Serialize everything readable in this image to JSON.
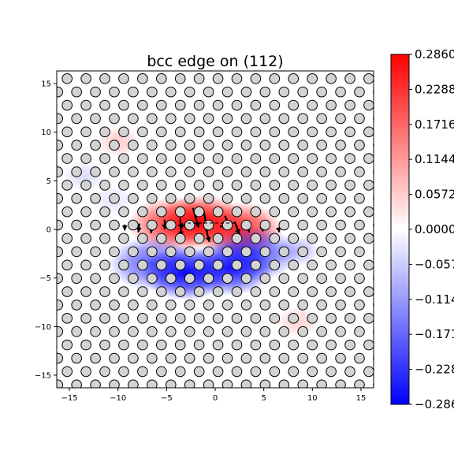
{
  "chart_data": {
    "type": "heatmap",
    "title": "bcc edge on (112)",
    "xlabel": "",
    "ylabel": "",
    "xlim": [
      -16.3,
      16.3
    ],
    "ylim": [
      -16.3,
      16.3
    ],
    "x_ticks": [
      -15,
      -10,
      -5,
      0,
      5,
      10,
      15
    ],
    "y_ticks": [
      -15,
      -10,
      -5,
      0,
      5,
      10,
      15
    ],
    "x_tick_labels": [
      "−15",
      "−10",
      "−5",
      "0",
      "5",
      "10",
      "15"
    ],
    "y_tick_labels": [
      "−15",
      "−10",
      "−5",
      "0",
      "5",
      "10",
      "15"
    ],
    "colormap": "bwr",
    "colormap_colors": [
      "#0000ff",
      "#ffffff",
      "#ff0000"
    ],
    "color_range": [
      -0.286,
      0.286
    ],
    "colorbar_ticks": [
      0.286,
      0.2288,
      0.1716,
      0.1144,
      0.0572,
      0.0,
      -0.0572,
      -0.1144,
      -0.1716,
      -0.2288,
      -0.286
    ],
    "colorbar_tick_labels": [
      "0.2860",
      "0.2288",
      "0.1716",
      "0.1144",
      "0.0572",
      "0.0000",
      "−0.0572",
      "−0.1144",
      "−0.1716",
      "−0.2288",
      "−0.2860"
    ],
    "atoms": {
      "lattice_a1": [
        1.94,
        0
      ],
      "lattice_a2": [
        0.97,
        1.37
      ],
      "origin": [
        -16.2,
        -16.0
      ],
      "marker_color": "#d3d3d3",
      "edge_color": "#000000"
    },
    "field_peaks": [
      {
        "x": -1.5,
        "y": 0.8,
        "value": 0.28
      },
      {
        "x": -4.5,
        "y": 0.5,
        "value": 0.22
      },
      {
        "x": 2.5,
        "y": 0.0,
        "value": 0.24
      },
      {
        "x": -3.0,
        "y": -4.5,
        "value": -0.28
      },
      {
        "x": 1.5,
        "y": -4.0,
        "value": -0.26
      },
      {
        "x": -6.5,
        "y": -3.5,
        "value": -0.18
      },
      {
        "x": 4.0,
        "y": -2.5,
        "value": -0.2
      },
      {
        "x": 8.5,
        "y": -2.2,
        "value": -0.08
      },
      {
        "x": -10.0,
        "y": 9.0,
        "value": 0.06
      },
      {
        "x": -13.5,
        "y": 5.5,
        "value": -0.04
      },
      {
        "x": -10.5,
        "y": 3.0,
        "value": -0.03
      },
      {
        "x": 8.5,
        "y": -9.5,
        "value": 0.05
      }
    ],
    "displacement_arrows": [
      {
        "x": -2.3,
        "y": 2.2,
        "dx": 0.6,
        "dy": -2.0
      },
      {
        "x": -1.2,
        "y": 2.0,
        "dx": 0.4,
        "dy": -2.2
      },
      {
        "x": -3.6,
        "y": 1.2,
        "dx": 0.1,
        "dy": -1.9
      },
      {
        "x": 1.0,
        "y": 1.4,
        "dx": 0.6,
        "dy": -1.3
      },
      {
        "x": 2.0,
        "y": 0.8,
        "dx": 0.5,
        "dy": -1.3
      },
      {
        "x": -5.2,
        "y": 1.0,
        "dx": 0.0,
        "dy": -1.0
      },
      {
        "x": -1.0,
        "y": 0.3,
        "dx": 0.4,
        "dy": -1.6
      },
      {
        "x": -6.5,
        "y": 0.8,
        "dx": -0.1,
        "dy": -1.2
      },
      {
        "x": -7.8,
        "y": 0.6,
        "dx": -0.1,
        "dy": -0.9
      },
      {
        "x": -3.0,
        "y": 0.4,
        "dx": -0.8,
        "dy": 0.0
      },
      {
        "x": 0.5,
        "y": 0.3,
        "dx": 1.0,
        "dy": 0.0
      },
      {
        "x": 3.3,
        "y": 0.5,
        "dx": 0.2,
        "dy": -0.8
      },
      {
        "x": 4.8,
        "y": 0.4,
        "dx": 0.1,
        "dy": -0.6
      },
      {
        "x": 6.5,
        "y": 0.2,
        "dx": 0.1,
        "dy": -0.5
      },
      {
        "x": -9.3,
        "y": 0.5,
        "dx": 0.0,
        "dy": -0.6
      }
    ]
  }
}
